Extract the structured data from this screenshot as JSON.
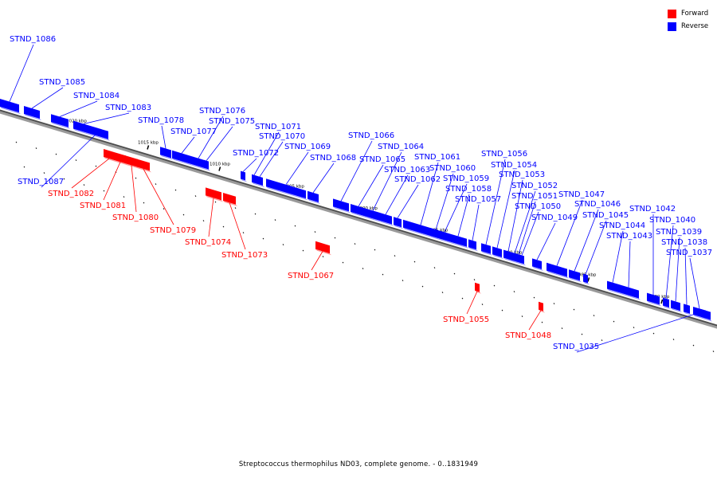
{
  "legend": {
    "forward_label": "Forward",
    "reverse_label": "Reverse",
    "forward_color": "#ff0000",
    "reverse_color": "#0000ff"
  },
  "caption": "Streptococcus thermophilus ND03, complete genome. - 0..1831949",
  "ticks": [
    "1020 kbp",
    "1015 kbp",
    "1010 kbp",
    "1005 kbp",
    "1000 kbp",
    "995 kbp",
    "990 kbp",
    "985 kbp",
    "980 kbp"
  ],
  "genes": [
    {
      "name": "STND_1086",
      "strand": "reverse"
    },
    {
      "name": "STND_1085",
      "strand": "reverse"
    },
    {
      "name": "STND_1084",
      "strand": "reverse"
    },
    {
      "name": "STND_1083",
      "strand": "reverse"
    },
    {
      "name": "STND_1087",
      "strand": "reverse"
    },
    {
      "name": "STND_1082",
      "strand": "forward"
    },
    {
      "name": "STND_1081",
      "strand": "forward"
    },
    {
      "name": "STND_1080",
      "strand": "forward"
    },
    {
      "name": "STND_1079",
      "strand": "forward"
    },
    {
      "name": "STND_1078",
      "strand": "reverse"
    },
    {
      "name": "STND_1077",
      "strand": "reverse"
    },
    {
      "name": "STND_1076",
      "strand": "reverse"
    },
    {
      "name": "STND_1075",
      "strand": "reverse"
    },
    {
      "name": "STND_1074",
      "strand": "forward"
    },
    {
      "name": "STND_1073",
      "strand": "forward"
    },
    {
      "name": "STND_1072",
      "strand": "reverse"
    },
    {
      "name": "STND_1071",
      "strand": "reverse"
    },
    {
      "name": "STND_1070",
      "strand": "reverse"
    },
    {
      "name": "STND_1069",
      "strand": "reverse"
    },
    {
      "name": "STND_1068",
      "strand": "reverse"
    },
    {
      "name": "STND_1067",
      "strand": "forward"
    },
    {
      "name": "STND_1066",
      "strand": "reverse"
    },
    {
      "name": "STND_1065",
      "strand": "reverse"
    },
    {
      "name": "STND_1064",
      "strand": "reverse"
    },
    {
      "name": "STND_1063",
      "strand": "reverse"
    },
    {
      "name": "STND_1062",
      "strand": "reverse"
    },
    {
      "name": "STND_1061",
      "strand": "reverse"
    },
    {
      "name": "STND_1060",
      "strand": "reverse"
    },
    {
      "name": "STND_1059",
      "strand": "reverse"
    },
    {
      "name": "STND_1058",
      "strand": "reverse"
    },
    {
      "name": "STND_1057",
      "strand": "reverse"
    },
    {
      "name": "STND_1056",
      "strand": "reverse"
    },
    {
      "name": "STND_1055",
      "strand": "forward"
    },
    {
      "name": "STND_1054",
      "strand": "reverse"
    },
    {
      "name": "STND_1053",
      "strand": "reverse"
    },
    {
      "name": "STND_1052",
      "strand": "reverse"
    },
    {
      "name": "STND_1051",
      "strand": "reverse"
    },
    {
      "name": "STND_1050",
      "strand": "reverse"
    },
    {
      "name": "STND_1049",
      "strand": "reverse"
    },
    {
      "name": "STND_1048",
      "strand": "forward"
    },
    {
      "name": "STND_1047",
      "strand": "reverse"
    },
    {
      "name": "STND_1046",
      "strand": "reverse"
    },
    {
      "name": "STND_1045",
      "strand": "reverse"
    },
    {
      "name": "STND_1044",
      "strand": "reverse"
    },
    {
      "name": "STND_1043",
      "strand": "reverse"
    },
    {
      "name": "STND_1042",
      "strand": "reverse"
    },
    {
      "name": "STND_1040",
      "strand": "reverse"
    },
    {
      "name": "STND_1039",
      "strand": "reverse"
    },
    {
      "name": "STND_1038",
      "strand": "reverse"
    },
    {
      "name": "STND_1037",
      "strand": "reverse"
    },
    {
      "name": "STND_1035",
      "strand": "reverse"
    }
  ]
}
